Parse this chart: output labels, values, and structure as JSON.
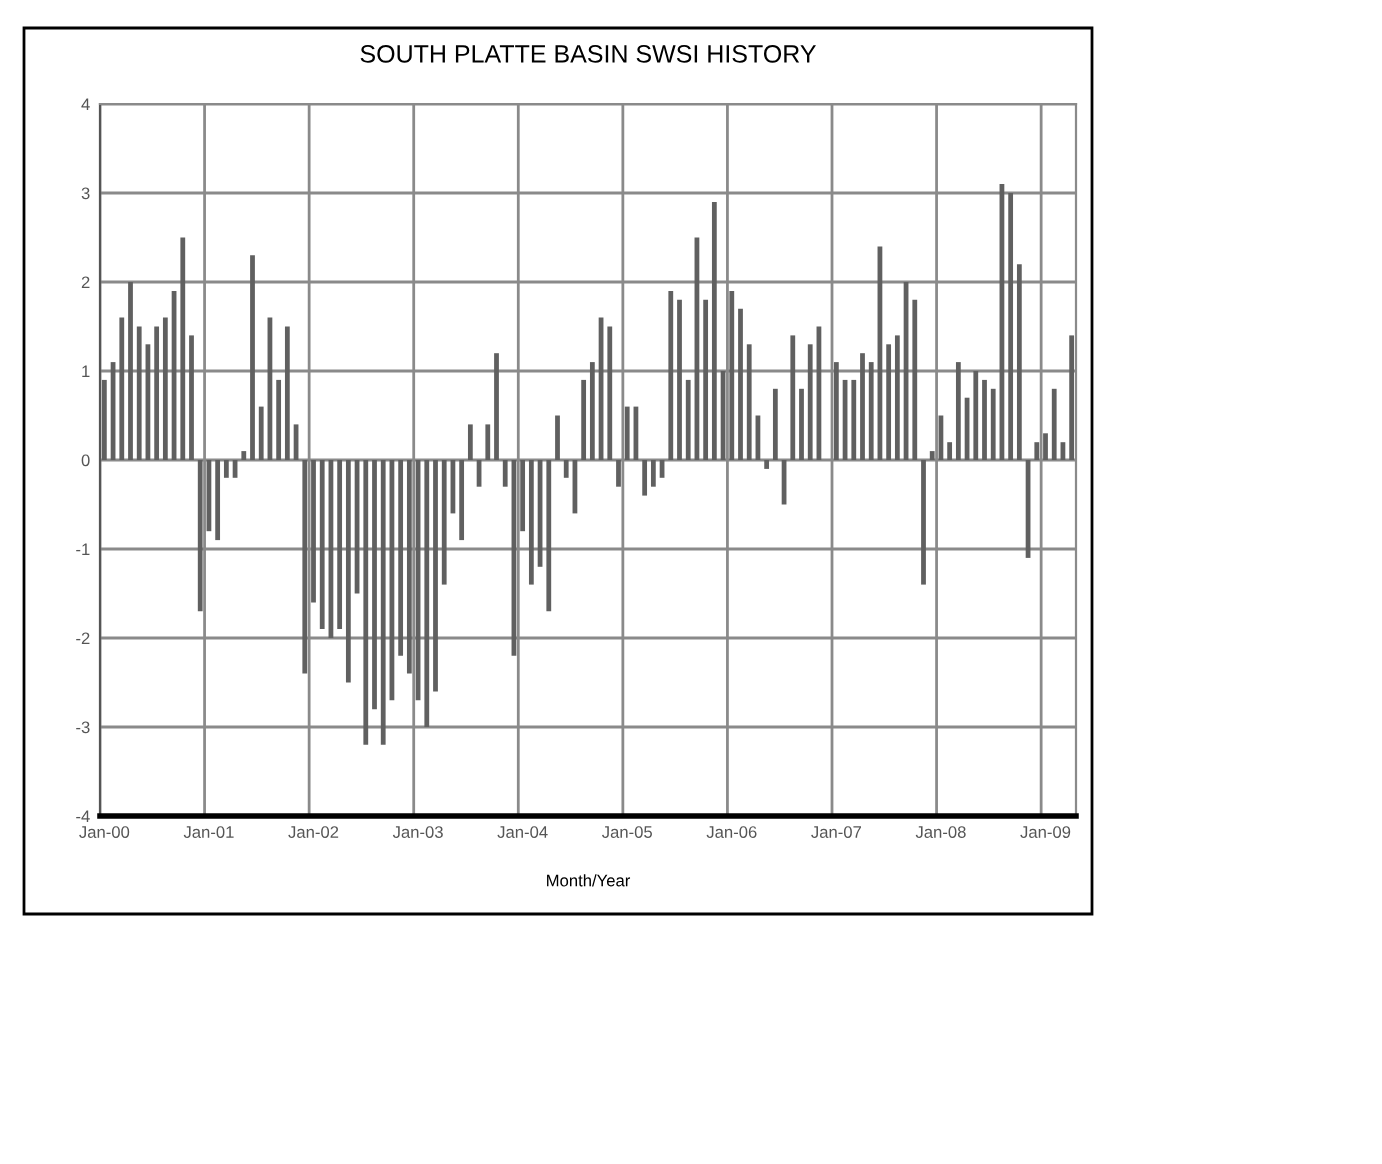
{
  "chart_data": {
    "type": "bar",
    "title": "SOUTH PLATTE BASIN SWSI HISTORY",
    "xlabel": "Month/Year",
    "categories": [
      "Jan-00",
      null,
      null,
      null,
      null,
      null,
      null,
      null,
      null,
      null,
      null,
      null,
      "Jan-01",
      null,
      null,
      null,
      null,
      null,
      null,
      null,
      null,
      null,
      null,
      null,
      "Jan-02",
      null,
      null,
      null,
      null,
      null,
      null,
      null,
      null,
      null,
      null,
      null,
      "Jan-03",
      null,
      null,
      null,
      null,
      null,
      null,
      null,
      null,
      null,
      null,
      null,
      "Jan-04",
      null,
      null,
      null,
      null,
      null,
      null,
      null,
      null,
      null,
      null,
      null,
      "Jan-05",
      null,
      null,
      null,
      null,
      null,
      null,
      null,
      null,
      null,
      null,
      null,
      "Jan-06",
      null,
      null,
      null,
      null,
      null,
      null,
      null,
      null,
      null,
      null,
      null,
      "Jan-07",
      null,
      null,
      null,
      null,
      null,
      null,
      null,
      null,
      null,
      null,
      null,
      "Jan-08",
      null,
      null,
      null,
      null,
      null,
      null,
      null,
      null,
      null,
      null,
      null,
      "Jan-09",
      null,
      null,
      null
    ],
    "values": [
      0.9,
      1.1,
      1.6,
      2.0,
      1.5,
      1.3,
      1.5,
      1.6,
      1.9,
      2.5,
      1.4,
      -1.7,
      -0.8,
      -0.9,
      -0.2,
      -0.2,
      0.1,
      2.3,
      0.6,
      1.6,
      0.9,
      1.5,
      0.4,
      -2.4,
      -1.6,
      -1.9,
      -2.0,
      -1.9,
      -2.5,
      -1.5,
      -3.2,
      -2.8,
      -3.2,
      -2.7,
      -2.2,
      -2.4,
      -2.7,
      -3.0,
      -2.6,
      -1.4,
      -0.6,
      -0.9,
      0.4,
      -0.3,
      0.4,
      1.2,
      -0.3,
      -2.2,
      -0.8,
      -1.4,
      -1.2,
      -1.7,
      0.5,
      -0.2,
      -0.6,
      0.9,
      1.1,
      1.6,
      1.5,
      -0.3,
      0.6,
      0.6,
      -0.4,
      -0.3,
      -0.2,
      1.9,
      1.8,
      0.9,
      2.5,
      1.8,
      2.9,
      1.0,
      1.9,
      1.7,
      1.3,
      0.5,
      -0.1,
      0.8,
      -0.5,
      1.4,
      0.8,
      1.3,
      1.5,
      null,
      1.1,
      0.9,
      0.9,
      1.2,
      1.1,
      2.4,
      1.3,
      1.4,
      2.0,
      1.8,
      -1.4,
      0.1,
      0.5,
      0.2,
      1.1,
      0.7,
      1.0,
      0.9,
      0.8,
      3.1,
      3.0,
      2.2,
      -1.1,
      0.2,
      0.3,
      0.8,
      0.2,
      1.4
    ],
    "color": "#606060",
    "ylim": [
      -4,
      4
    ],
    "yticks": [
      -4,
      -3,
      -2,
      -1,
      0,
      1,
      2,
      3,
      4
    ],
    "grid": true,
    "legend": false
  }
}
